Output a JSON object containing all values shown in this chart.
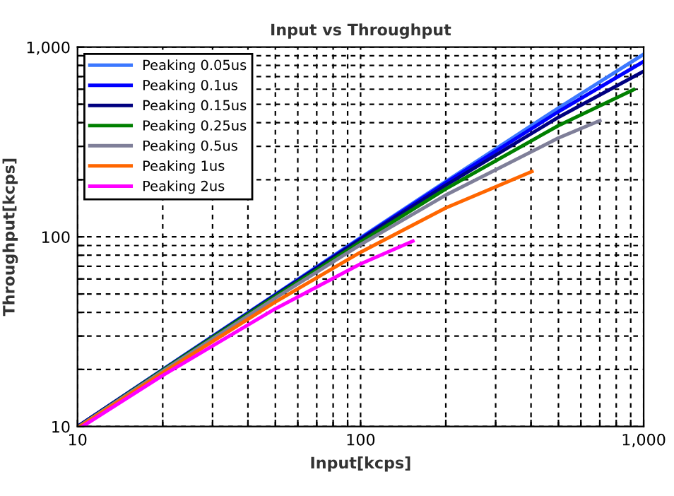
{
  "chart_data": {
    "type": "line",
    "title": "Input vs Throughput",
    "xlabel": "Input[kcps]",
    "ylabel": "Throughput[kcps]",
    "log": "xy",
    "grid": true,
    "legend": "top left",
    "line_style": "solid",
    "marker": "none",
    "xlim": [
      10,
      1000
    ],
    "ylim": [
      10,
      1000
    ],
    "xticks": [
      10,
      {
        "value": 20,
        "label": null
      },
      {
        "value": 30,
        "label": null
      },
      {
        "value": 40,
        "label": null
      },
      {
        "value": 50,
        "label": null
      },
      {
        "value": 60,
        "label": null
      },
      {
        "value": 70,
        "label": null
      },
      {
        "value": 80,
        "label": null
      },
      {
        "value": 90,
        "label": null
      },
      100,
      {
        "value": 200,
        "label": null
      },
      {
        "value": 300,
        "label": null
      },
      {
        "value": 400,
        "label": null
      },
      {
        "value": 500,
        "label": null
      },
      {
        "value": 600,
        "label": null
      },
      {
        "value": 700,
        "label": null
      },
      {
        "value": 800,
        "label": null
      },
      {
        "value": 900,
        "label": null
      },
      {
        "value": 1000,
        "label": "1,000"
      }
    ],
    "yticks": [
      10,
      {
        "value": 20,
        "label": null
      },
      {
        "value": 30,
        "label": null
      },
      {
        "value": 40,
        "label": null
      },
      {
        "value": 50,
        "label": null
      },
      {
        "value": 60,
        "label": null
      },
      {
        "value": 70,
        "label": null
      },
      {
        "value": 80,
        "label": null
      },
      {
        "value": 90,
        "label": null
      },
      100,
      {
        "value": 200,
        "label": null
      },
      {
        "value": 300,
        "label": null
      },
      {
        "value": 400,
        "label": null
      },
      {
        "value": 500,
        "label": null
      },
      {
        "value": 600,
        "label": null
      },
      {
        "value": 700,
        "label": null
      },
      {
        "value": 800,
        "label": null
      },
      {
        "value": 900,
        "label": null
      },
      {
        "value": 1000,
        "label": "1,000"
      }
    ],
    "series": [
      {
        "name": "Peaking 0.05us",
        "color": "#3c78ff",
        "x": [
          10,
          20,
          50,
          100,
          200,
          500,
          1000
        ],
        "values": [
          10,
          20,
          49.8,
          99,
          196,
          478,
          917
        ]
      },
      {
        "name": "Peaking 0.1us",
        "color": "#0000ff",
        "x": [
          10,
          20,
          50,
          100,
          200,
          500,
          1000
        ],
        "values": [
          10,
          19.9,
          49.5,
          98,
          193,
          457,
          840
        ]
      },
      {
        "name": "Peaking 0.15us",
        "color": "#000080",
        "x": [
          10,
          20,
          50,
          100,
          200,
          500,
          1000
        ],
        "values": [
          10,
          19.9,
          49.2,
          97,
          187,
          427,
          746
        ]
      },
      {
        "name": "Peaking 0.25us",
        "color": "#008000",
        "x": [
          10.1,
          20,
          50,
          100,
          200,
          500,
          922
        ],
        "values": [
          10,
          19.8,
          48.6,
          94,
          179,
          386,
          597
        ]
      },
      {
        "name": "Peaking 0.5us",
        "color": "#7f7f99",
        "x": [
          10.1,
          20,
          50,
          100,
          200,
          500,
          700
        ],
        "values": [
          10,
          19.6,
          47.6,
          91,
          166,
          332,
          410
        ]
      },
      {
        "name": "Peaking 1us",
        "color": "#ff6600",
        "x": [
          10.2,
          20,
          50,
          100,
          200,
          403
        ],
        "values": [
          10,
          19.2,
          45.4,
          83,
          142,
          221
        ]
      },
      {
        "name": "Peaking 2us",
        "color": "#ff00ff",
        "x": [
          10.4,
          20,
          50,
          100,
          153
        ],
        "values": [
          10,
          18.6,
          41.8,
          72,
          95
        ]
      }
    ]
  }
}
